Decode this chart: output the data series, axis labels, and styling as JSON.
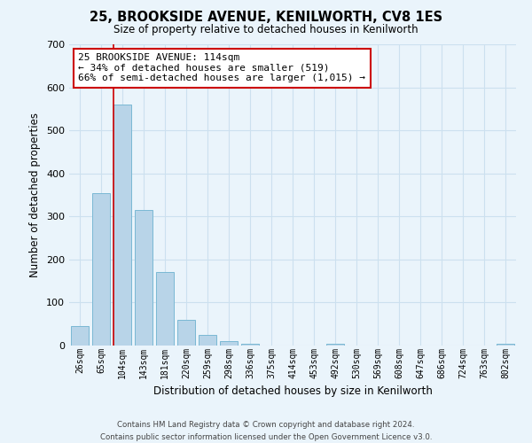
{
  "title": "25, BROOKSIDE AVENUE, KENILWORTH, CV8 1ES",
  "subtitle": "Size of property relative to detached houses in Kenilworth",
  "xlabel": "Distribution of detached houses by size in Kenilworth",
  "ylabel": "Number of detached properties",
  "bin_labels": [
    "26sqm",
    "65sqm",
    "104sqm",
    "143sqm",
    "181sqm",
    "220sqm",
    "259sqm",
    "298sqm",
    "336sqm",
    "375sqm",
    "414sqm",
    "453sqm",
    "492sqm",
    "530sqm",
    "569sqm",
    "608sqm",
    "647sqm",
    "686sqm",
    "724sqm",
    "763sqm",
    "802sqm"
  ],
  "bar_heights": [
    45,
    355,
    560,
    315,
    170,
    60,
    25,
    10,
    5,
    0,
    0,
    0,
    5,
    0,
    0,
    0,
    0,
    0,
    0,
    0,
    5
  ],
  "bar_color": "#b8d4e8",
  "bar_edge_color": "#7ab8d4",
  "ylim": [
    0,
    700
  ],
  "yticks": [
    0,
    100,
    200,
    300,
    400,
    500,
    600,
    700
  ],
  "red_line_x": 1.57,
  "red_line_color": "#cc0000",
  "annotation_line1": "25 BROOKSIDE AVENUE: 114sqm",
  "annotation_line2": "← 34% of detached houses are smaller (519)",
  "annotation_line3": "66% of semi-detached houses are larger (1,015) →",
  "annotation_box_color": "#ffffff",
  "annotation_box_edge_color": "#cc0000",
  "footer_line1": "Contains HM Land Registry data © Crown copyright and database right 2024.",
  "footer_line2": "Contains public sector information licensed under the Open Government Licence v3.0.",
  "grid_color": "#cce0ef",
  "background_color": "#eaf4fb"
}
